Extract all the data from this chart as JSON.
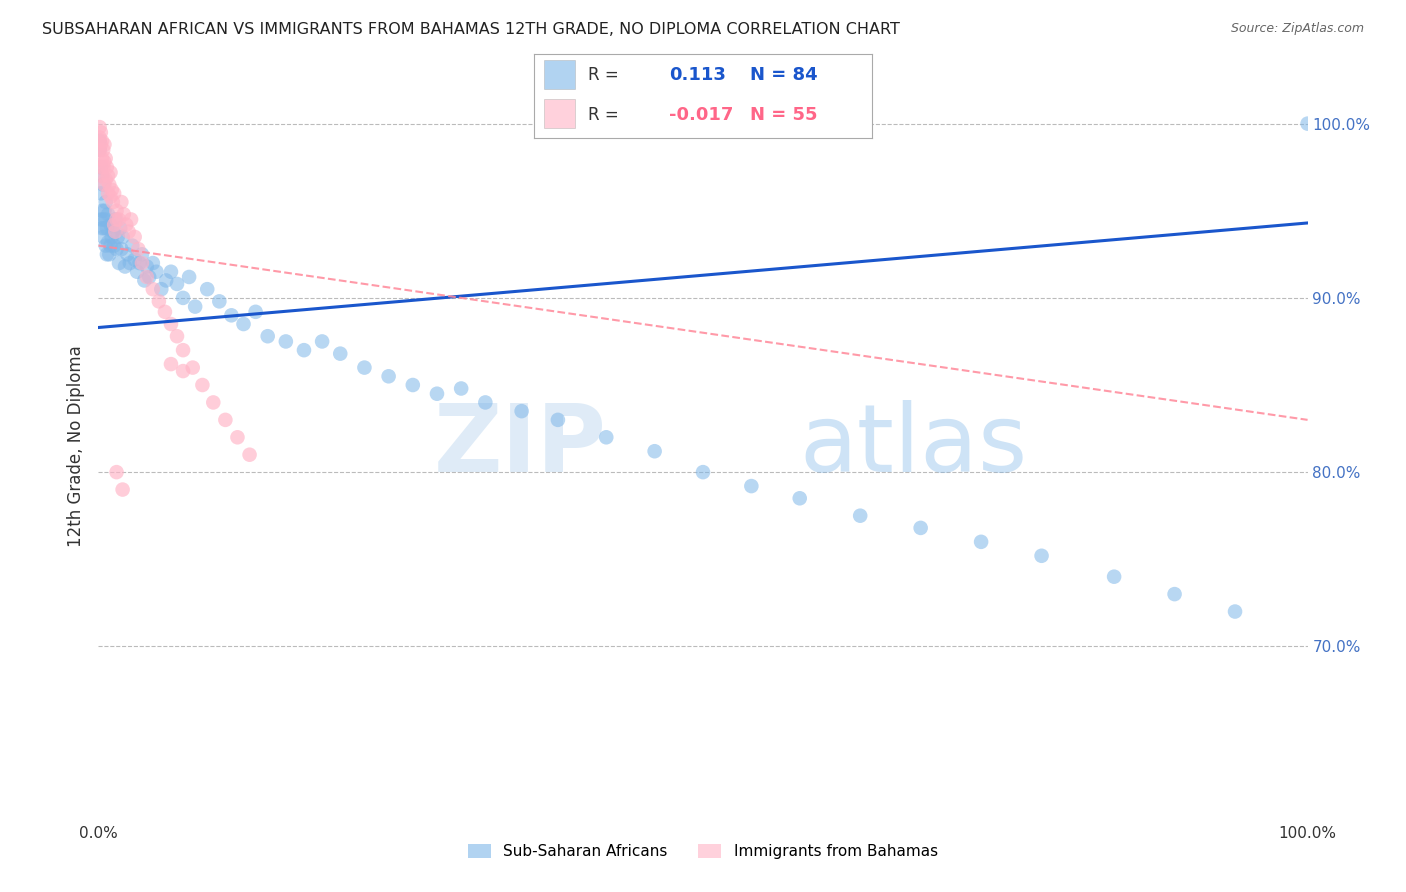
{
  "title": "SUBSAHARAN AFRICAN VS IMMIGRANTS FROM BAHAMAS 12TH GRADE, NO DIPLOMA CORRELATION CHART",
  "source": "Source: ZipAtlas.com",
  "ylabel": "12th Grade, No Diploma",
  "y_tick_labels_right": [
    "100.0%",
    "90.0%",
    "80.0%",
    "70.0%"
  ],
  "y_tick_positions_right": [
    1.0,
    0.9,
    0.8,
    0.7
  ],
  "legend_label1": "Sub-Saharan Africans",
  "legend_label2": "Immigrants from Bahamas",
  "R1": 0.113,
  "N1": 84,
  "R2": -0.017,
  "N2": 55,
  "color_blue": "#7EB6E8",
  "color_pink": "#FFB3C6",
  "color_blue_line": "#1A56CC",
  "color_pink_line": "#FF8899",
  "watermark_zip": "ZIP",
  "watermark_atlas": "atlas",
  "blue_x": [
    0.001,
    0.001,
    0.002,
    0.002,
    0.002,
    0.003,
    0.003,
    0.003,
    0.004,
    0.004,
    0.004,
    0.005,
    0.005,
    0.006,
    0.006,
    0.006,
    0.007,
    0.007,
    0.008,
    0.008,
    0.009,
    0.01,
    0.01,
    0.011,
    0.012,
    0.013,
    0.014,
    0.015,
    0.016,
    0.017,
    0.018,
    0.019,
    0.02,
    0.022,
    0.024,
    0.026,
    0.028,
    0.03,
    0.032,
    0.034,
    0.036,
    0.038,
    0.04,
    0.042,
    0.045,
    0.048,
    0.052,
    0.056,
    0.06,
    0.065,
    0.07,
    0.075,
    0.08,
    0.09,
    0.1,
    0.11,
    0.12,
    0.13,
    0.14,
    0.155,
    0.17,
    0.185,
    0.2,
    0.22,
    0.24,
    0.26,
    0.28,
    0.3,
    0.32,
    0.35,
    0.38,
    0.42,
    0.46,
    0.5,
    0.54,
    0.58,
    0.63,
    0.68,
    0.73,
    0.78,
    0.84,
    0.89,
    0.94,
    1.0
  ],
  "blue_y": [
    0.99,
    0.985,
    0.975,
    0.96,
    0.945,
    0.97,
    0.95,
    0.94,
    0.965,
    0.945,
    0.935,
    0.95,
    0.94,
    0.955,
    0.945,
    0.93,
    0.94,
    0.925,
    0.948,
    0.932,
    0.925,
    0.942,
    0.93,
    0.935,
    0.938,
    0.93,
    0.945,
    0.928,
    0.935,
    0.92,
    0.94,
    0.928,
    0.935,
    0.918,
    0.925,
    0.92,
    0.93,
    0.922,
    0.915,
    0.92,
    0.925,
    0.91,
    0.918,
    0.912,
    0.92,
    0.915,
    0.905,
    0.91,
    0.915,
    0.908,
    0.9,
    0.912,
    0.895,
    0.905,
    0.898,
    0.89,
    0.885,
    0.892,
    0.878,
    0.875,
    0.87,
    0.875,
    0.868,
    0.86,
    0.855,
    0.85,
    0.845,
    0.848,
    0.84,
    0.835,
    0.83,
    0.82,
    0.812,
    0.8,
    0.792,
    0.785,
    0.775,
    0.768,
    0.76,
    0.752,
    0.74,
    0.73,
    0.72,
    1.0
  ],
  "pink_x": [
    0.001,
    0.001,
    0.001,
    0.002,
    0.002,
    0.002,
    0.003,
    0.003,
    0.003,
    0.004,
    0.004,
    0.005,
    0.005,
    0.005,
    0.006,
    0.006,
    0.007,
    0.008,
    0.008,
    0.009,
    0.01,
    0.01,
    0.011,
    0.012,
    0.013,
    0.015,
    0.017,
    0.019,
    0.021,
    0.023,
    0.025,
    0.027,
    0.03,
    0.033,
    0.036,
    0.04,
    0.045,
    0.05,
    0.055,
    0.06,
    0.065,
    0.07,
    0.078,
    0.086,
    0.095,
    0.105,
    0.115,
    0.125,
    0.013,
    0.014,
    0.015,
    0.06,
    0.07,
    0.015,
    0.02
  ],
  "pink_y": [
    0.998,
    0.992,
    0.985,
    0.995,
    0.988,
    0.975,
    0.99,
    0.98,
    0.97,
    0.985,
    0.975,
    0.988,
    0.978,
    0.965,
    0.98,
    0.968,
    0.975,
    0.97,
    0.96,
    0.965,
    0.972,
    0.958,
    0.962,
    0.955,
    0.96,
    0.95,
    0.945,
    0.955,
    0.948,
    0.942,
    0.938,
    0.945,
    0.935,
    0.928,
    0.92,
    0.912,
    0.905,
    0.898,
    0.892,
    0.885,
    0.878,
    0.87,
    0.86,
    0.85,
    0.84,
    0.83,
    0.82,
    0.81,
    0.942,
    0.938,
    0.945,
    0.862,
    0.858,
    0.8,
    0.79
  ]
}
